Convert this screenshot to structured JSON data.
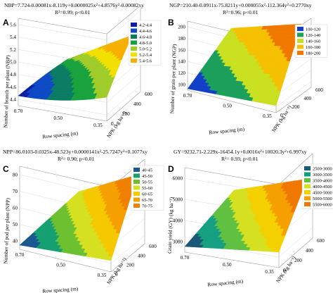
{
  "chart_data": [
    {
      "type": "surface",
      "panel": "A",
      "equation": "NBP=7.724-0.00081x-8.119y+0.0000025x²+4.8576y²-0.00082xy",
      "stats": "R²=0.99; p<0.01",
      "xlabel": "Row spacing (m)",
      "ylabel": "NPK (kg ha⁻¹)",
      "zlabel": "Number of branch per plant (NBP)",
      "x_ticks": [
        "0.70",
        "0.50",
        "0.35"
      ],
      "y_ticks": [
        "0",
        "200",
        "400",
        "600"
      ],
      "z_ticks": [
        "4.4",
        "4.6",
        "4.8",
        "5.0",
        "5.2",
        "5.4",
        "5.6"
      ],
      "zlim": [
        4.4,
        5.6
      ],
      "legend": [
        {
          "label": "4.2-4.4",
          "color": "#0b1fa6"
        },
        {
          "label": "4.4-4.6",
          "color": "#0d49c4"
        },
        {
          "label": "4.6-4.8",
          "color": "#0a7c63"
        },
        {
          "label": "4.8-5.0",
          "color": "#18a23c"
        },
        {
          "label": "5.0-5.2",
          "color": "#a0cc2a"
        },
        {
          "label": "5.2-5.4",
          "color": "#f2e000"
        },
        {
          "label": "5.4-5.6",
          "color": "#f5b000"
        }
      ]
    },
    {
      "type": "surface",
      "panel": "B",
      "equation": "NGP=210.40-0.0911x-75.8211y+0.000055x²-112.364y²+0.2770xy",
      "stats": "R²=0.96; p<0.01",
      "xlabel": "Row spacing (m)",
      "ylabel": "NPK (kg ha⁻¹)",
      "zlabel": "Number of grain per plant (NGP)",
      "x_ticks": [
        "0.70",
        "0.50",
        "0.35"
      ],
      "y_ticks": [
        "0",
        "200",
        "400",
        "600"
      ],
      "z_ticks": [
        "100",
        "120",
        "140",
        "160",
        "180",
        "200"
      ],
      "zlim": [
        100,
        210
      ],
      "legend": [
        {
          "label": "100-120",
          "color": "#1040c8"
        },
        {
          "label": "120-140",
          "color": "#1aa05a"
        },
        {
          "label": "140-160",
          "color": "#c8e020"
        },
        {
          "label": "160-180",
          "color": "#f5c000"
        },
        {
          "label": "180-200",
          "color": "#f07800"
        }
      ]
    },
    {
      "type": "surface",
      "panel": "C",
      "equation": "NPP=86.0103-0.0325x-48.523y+0.0000141x²-25.7247y²+0.1077xy",
      "stats": "R²= 0.90; p<0.01",
      "xlabel": "Row spacing (m)",
      "ylabel": "NPK (kg ha⁻¹)",
      "zlabel": "Number of pod per plant (NPP)",
      "x_ticks": [
        "0.70",
        "0.50",
        "0.35"
      ],
      "y_ticks": [
        "0",
        "200",
        "400",
        "600"
      ],
      "z_ticks": [
        "40",
        "50",
        "60",
        "70",
        "80"
      ],
      "zlim": [
        40,
        80
      ],
      "legend": [
        {
          "label": "40-45",
          "color": "#1a5890"
        },
        {
          "label": "45-50",
          "color": "#14a070"
        },
        {
          "label": "50-55",
          "color": "#6cc030"
        },
        {
          "label": "55-60",
          "color": "#d4e020"
        },
        {
          "label": "60-65",
          "color": "#f5c800"
        },
        {
          "label": "65-70",
          "color": "#f5a000"
        },
        {
          "label": "70-75",
          "color": "#f08000"
        }
      ]
    },
    {
      "type": "surface",
      "panel": "D",
      "equation": "GY=9232.71-2.229x-16454.1y+0.0016x²+10020.3y²+6.997xy",
      "stats": "R²= 0.93; p<0.01",
      "xlabel": "Row spacing (m)",
      "ylabel": "NPK (kg ha⁻¹)",
      "zlabel": "Grain yield (GY) (kg ha⁻¹)",
      "x_ticks": [
        "0.70",
        "0.50",
        "0.35"
      ],
      "y_ticks": [
        "0",
        "200",
        "400",
        "600"
      ],
      "z_ticks": [
        "3000",
        "4000",
        "5000",
        "6000"
      ],
      "zlim": [
        2500,
        6000
      ],
      "legend": [
        {
          "label": "2500-3000",
          "color": "#1a5878"
        },
        {
          "label": "3000-3500",
          "color": "#14a080"
        },
        {
          "label": "3500-4000",
          "color": "#60c040"
        },
        {
          "label": "4000-4500",
          "color": "#d4e020"
        },
        {
          "label": "4500-5000",
          "color": "#f5d000"
        },
        {
          "label": "5000-5500",
          "color": "#f5a000"
        },
        {
          "label": "5500-6000",
          "color": "#f07800"
        }
      ]
    }
  ]
}
